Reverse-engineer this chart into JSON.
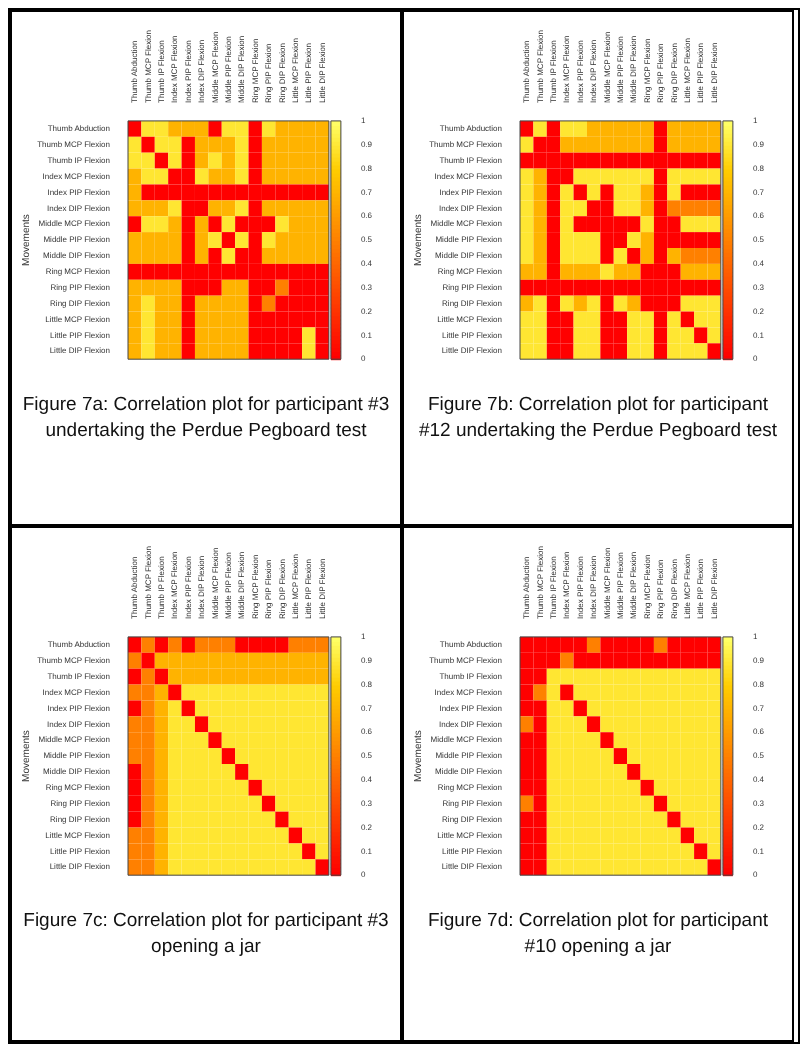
{
  "chart_data": [
    {
      "type": "heatmap",
      "ylabel": "Movements",
      "annotations": [
        "Figure 7a: Correlation plot for participant #3 undertaking the Perdue Pegboard test"
      ],
      "clim": [
        0,
        1
      ],
      "cticks": [
        0,
        0.1,
        0.2,
        0.3,
        0.4,
        0.5,
        0.6,
        0.7,
        0.8,
        0.9,
        1
      ],
      "categories": [
        "Thumb Abduction",
        "Thumb MCP Flexion",
        "Thumb IP Flexion",
        "Index MCP Flexion",
        "Index PIP Flexion",
        "Index DIP Flexion",
        "Middle MCP Flexion",
        "Middle PIP Flexion",
        "Middle DIP Flexion",
        "Ring MCP Flexion",
        "Ring PIP Flexion",
        "Ring DIP Flexion",
        "Little MCP Flexion",
        "Little PIP Flexion",
        "Little DIP Flexion"
      ],
      "y_categories": [
        "Thumb Abduction",
        "Thumb MCP Flexion",
        "Thumb IP Flexion",
        "Index MCP Flexion",
        "Index PIP Flexion",
        "Index DIP Flexion",
        "Middle MCP Flexion",
        "Middle PIP Flexion",
        "Middle DIP Flexion",
        "Ring MCP Flexion",
        "Ring PIP Flexion",
        "Ring DIP Flexion",
        "Little MCP Flexion",
        "Little PIP Flexion",
        "Little DIP Flexion"
      ],
      "cells": [
        [
          0,
          0.9,
          0.9,
          0.7,
          0.7,
          0.7,
          0,
          0.9,
          0.9,
          0,
          0.9,
          0.7,
          0.7,
          0.7,
          0.7
        ],
        [
          0.9,
          0,
          0.9,
          0.9,
          0,
          0.7,
          0.7,
          0.7,
          0.9,
          0,
          0.7,
          0.7,
          0.7,
          0.7,
          0.7
        ],
        [
          0.9,
          0.9,
          0,
          0.9,
          0,
          0.7,
          0.9,
          0.7,
          0.9,
          0,
          0.7,
          0.7,
          0.7,
          0.7,
          0.7
        ],
        [
          0.7,
          0.9,
          0.9,
          0,
          0,
          0.9,
          0.7,
          0.7,
          0.9,
          0,
          0.7,
          0.7,
          0.7,
          0.7,
          0.7
        ],
        [
          0.7,
          0,
          0,
          0,
          0,
          0,
          0,
          0,
          0,
          0,
          0,
          0,
          0,
          0,
          0
        ],
        [
          0.7,
          0.7,
          0.7,
          0.9,
          0,
          0,
          0.7,
          0.7,
          0.9,
          0,
          0.7,
          0.7,
          0.7,
          0.7,
          0.7
        ],
        [
          0,
          0.9,
          0.9,
          0.7,
          0,
          0.7,
          0,
          0.9,
          0,
          0,
          0,
          0.9,
          0.7,
          0.7,
          0.7
        ],
        [
          0.7,
          0.7,
          0.7,
          0.7,
          0,
          0.7,
          0.9,
          0,
          0.9,
          0,
          0.9,
          0.7,
          0.7,
          0.7,
          0.7
        ],
        [
          0.7,
          0.7,
          0.7,
          0.7,
          0,
          0.7,
          0,
          0.9,
          0,
          0,
          0.7,
          0.7,
          0.7,
          0.7,
          0.7
        ],
        [
          0,
          0,
          0,
          0,
          0,
          0,
          0,
          0,
          0,
          0,
          0,
          0,
          0,
          0,
          0
        ],
        [
          0.7,
          0.7,
          0.7,
          0.7,
          0,
          0,
          0,
          0.7,
          0.7,
          0,
          0,
          0.5,
          0,
          0,
          0
        ],
        [
          0.7,
          0.9,
          0.7,
          0.7,
          0,
          0.7,
          0.7,
          0.7,
          0.7,
          0,
          0.5,
          0,
          0,
          0,
          0
        ],
        [
          0.7,
          0.9,
          0.7,
          0.7,
          0,
          0.7,
          0.7,
          0.7,
          0.7,
          0,
          0,
          0,
          0,
          0,
          0
        ],
        [
          0.7,
          0.9,
          0.7,
          0.7,
          0,
          0.7,
          0.7,
          0.7,
          0.7,
          0,
          0,
          0,
          0,
          0.9,
          0
        ],
        [
          0.7,
          0.9,
          0.7,
          0.7,
          0,
          0.7,
          0.7,
          0.7,
          0.7,
          0,
          0,
          0,
          0,
          0.9,
          0
        ]
      ]
    },
    {
      "type": "heatmap",
      "ylabel": "Movements",
      "annotations": [
        "Figure 7b: Correlation plot for participant #12 undertaking the Perdue Pegboard test"
      ],
      "clim": [
        0,
        1
      ],
      "cticks": [
        0,
        0.1,
        0.2,
        0.3,
        0.4,
        0.5,
        0.6,
        0.7,
        0.8,
        0.9,
        1
      ],
      "categories": [
        "Thumb Abduction",
        "Thumb MCP Flexion",
        "Thumb IP Flexion",
        "Index MCP Flexion",
        "Index PIP Flexion",
        "Index DIP Flexion",
        "Middle MCP Flexion",
        "Middle PIP Flexion",
        "Middle DIP Flexion",
        "Ring MCP Flexion",
        "Ring PIP Flexion",
        "Ring DIP Flexion",
        "Little MCP Flexion",
        "Little PIP Flexion",
        "Little DIP Flexion"
      ],
      "y_categories": [
        "Thumb Abduction",
        "Thumb MCP Flexion",
        "Thumb IP Flexion",
        "Index MCP Flexion",
        "Index PIP Flexion",
        "Index DIP Flexion",
        "Middle MCP Flexion",
        "Middle PIP Flexion",
        "Middle DIP Flexion",
        "Ring MCP Flexion",
        "Ring PIP Flexion",
        "Ring DIP Flexion",
        "Little MCP Flexion",
        "Little PIP Flexion",
        "Little DIP Flexion"
      ],
      "cells": [
        [
          0,
          0.9,
          0,
          0.9,
          0.9,
          0.7,
          0.7,
          0.7,
          0.7,
          0.7,
          0,
          0.7,
          0.7,
          0.7,
          0.7
        ],
        [
          0.9,
          0,
          0,
          0.7,
          0.7,
          0.7,
          0.7,
          0.7,
          0.7,
          0.7,
          0,
          0.7,
          0.7,
          0.7,
          0.7
        ],
        [
          0,
          0,
          0,
          0,
          0,
          0,
          0,
          0,
          0,
          0,
          0,
          0,
          0,
          0,
          0
        ],
        [
          0.9,
          0.7,
          0,
          0,
          0.9,
          0.9,
          0.9,
          0.9,
          0.9,
          0.9,
          0,
          0.9,
          0.9,
          0.9,
          0.9
        ],
        [
          0.9,
          0.7,
          0,
          0.9,
          0,
          0.9,
          0,
          0.9,
          0.9,
          0.7,
          0,
          0.9,
          0,
          0,
          0
        ],
        [
          0.9,
          0.7,
          0,
          0.9,
          0.9,
          0,
          0,
          0.9,
          0.9,
          0.7,
          0,
          0.5,
          0.5,
          0.5,
          0.5
        ],
        [
          0.9,
          0.7,
          0,
          0.9,
          0,
          0,
          0,
          0,
          0,
          0.9,
          0,
          0,
          0.9,
          0.9,
          0.9
        ],
        [
          0.9,
          0.7,
          0,
          0.9,
          0.9,
          0.9,
          0,
          0,
          0.9,
          0.7,
          0,
          0,
          0,
          0,
          0
        ],
        [
          0.9,
          0.7,
          0,
          0.9,
          0.9,
          0.9,
          0,
          0.9,
          0,
          0.7,
          0,
          0.7,
          0.5,
          0.5,
          0.5
        ],
        [
          0.7,
          0.7,
          0,
          0.7,
          0.7,
          0.7,
          0.9,
          0.7,
          0.7,
          0,
          0,
          0,
          0.7,
          0.7,
          0.7
        ],
        [
          0,
          0,
          0,
          0,
          0,
          0,
          0,
          0,
          0,
          0,
          0,
          0,
          0,
          0,
          0
        ],
        [
          0.7,
          0.9,
          0,
          0.9,
          0.7,
          0.9,
          0,
          0.9,
          0.7,
          0,
          0,
          0,
          0.9,
          0.9,
          0.9
        ],
        [
          0.9,
          0.9,
          0,
          0,
          0.9,
          0.9,
          0,
          0,
          0.9,
          0.9,
          0,
          0.9,
          0,
          0.9,
          0.9
        ],
        [
          0.9,
          0.9,
          0,
          0,
          0.9,
          0.9,
          0,
          0,
          0.9,
          0.9,
          0,
          0.9,
          0.9,
          0,
          0.9
        ],
        [
          0.9,
          0.9,
          0,
          0,
          0.9,
          0.9,
          0,
          0,
          0.9,
          0.9,
          0,
          0.9,
          0.9,
          0.9,
          0
        ]
      ]
    },
    {
      "type": "heatmap",
      "ylabel": "Movements",
      "annotations": [
        "Figure 7c: Correlation plot for participant #3 opening a jar"
      ],
      "clim": [
        0,
        1
      ],
      "cticks": [
        0,
        0.1,
        0.2,
        0.3,
        0.4,
        0.5,
        0.6,
        0.7,
        0.8,
        0.9,
        1
      ],
      "categories": [
        "Thumb Abduction",
        "Thumb MCP Flexion",
        "Thumb IP Flexion",
        "Index MCP Flexion",
        "Index PIP Flexion",
        "Index DIP Flexion",
        "Middle MCP Flexion",
        "Middle PIP Flexion",
        "Middle DIP Flexion",
        "Ring MCP Flexion",
        "Ring PIP Flexion",
        "Ring DIP Flexion",
        "Little MCP Flexion",
        "Little PIP Flexion",
        "Little DIP Flexion"
      ],
      "y_categories": [
        "Thumb Abduction",
        "Thumb MCP Flexion",
        "Thumb IP Flexion",
        "Index MCP Flexion",
        "Index PIP Flexion",
        "Index DIP Flexion",
        "Middle MCP Flexion",
        "Middle PIP Flexion",
        "Middle DIP Flexion",
        "Ring MCP Flexion",
        "Ring PIP Flexion",
        "Ring DIP Flexion",
        "Little MCP Flexion",
        "Little PIP Flexion",
        "Little DIP Flexion"
      ],
      "cells": [
        [
          0,
          0.5,
          0,
          0.5,
          0,
          0.5,
          0.5,
          0.5,
          0,
          0,
          0,
          0,
          0.5,
          0.5,
          0.5
        ],
        [
          0.5,
          0,
          0.7,
          0.7,
          0.7,
          0.7,
          0.7,
          0.7,
          0.7,
          0.7,
          0.7,
          0.7,
          0.7,
          0.7,
          0.7
        ],
        [
          0,
          0.5,
          0,
          0.7,
          0.7,
          0.7,
          0.7,
          0.7,
          0.7,
          0.7,
          0.7,
          0.7,
          0.7,
          0.7,
          0.7
        ],
        [
          0.5,
          0.5,
          0.7,
          0,
          0.9,
          0.9,
          0.9,
          0.9,
          0.9,
          0.9,
          0.9,
          0.9,
          0.9,
          0.9,
          0.9
        ],
        [
          0,
          0.5,
          0.7,
          0.9,
          0,
          0.9,
          0.9,
          0.9,
          0.9,
          0.9,
          0.9,
          0.9,
          0.9,
          0.9,
          0.9
        ],
        [
          0.5,
          0.5,
          0.7,
          0.9,
          0.9,
          0,
          0.9,
          0.9,
          0.9,
          0.9,
          0.9,
          0.9,
          0.9,
          0.9,
          0.9
        ],
        [
          0.5,
          0.5,
          0.7,
          0.9,
          0.9,
          0.9,
          0,
          0.9,
          0.9,
          0.9,
          0.9,
          0.9,
          0.9,
          0.9,
          0.9
        ],
        [
          0.5,
          0.5,
          0.7,
          0.9,
          0.9,
          0.9,
          0.9,
          0,
          0.9,
          0.9,
          0.9,
          0.9,
          0.9,
          0.9,
          0.9
        ],
        [
          0,
          0.5,
          0.7,
          0.9,
          0.9,
          0.9,
          0.9,
          0.9,
          0,
          0.9,
          0.9,
          0.9,
          0.9,
          0.9,
          0.9
        ],
        [
          0,
          0.5,
          0.7,
          0.9,
          0.9,
          0.9,
          0.9,
          0.9,
          0.9,
          0,
          0.9,
          0.9,
          0.9,
          0.9,
          0.9
        ],
        [
          0,
          0.5,
          0.7,
          0.9,
          0.9,
          0.9,
          0.9,
          0.9,
          0.9,
          0.9,
          0,
          0.9,
          0.9,
          0.9,
          0.9
        ],
        [
          0,
          0.5,
          0.7,
          0.9,
          0.9,
          0.9,
          0.9,
          0.9,
          0.9,
          0.9,
          0.9,
          0,
          0.9,
          0.9,
          0.9
        ],
        [
          0.5,
          0.5,
          0.7,
          0.9,
          0.9,
          0.9,
          0.9,
          0.9,
          0.9,
          0.9,
          0.9,
          0.9,
          0,
          0.9,
          0.9
        ],
        [
          0.5,
          0.5,
          0.7,
          0.9,
          0.9,
          0.9,
          0.9,
          0.9,
          0.9,
          0.9,
          0.9,
          0.9,
          0.9,
          0,
          0.9
        ],
        [
          0.5,
          0.5,
          0.7,
          0.9,
          0.9,
          0.9,
          0.9,
          0.9,
          0.9,
          0.9,
          0.9,
          0.9,
          0.9,
          0.9,
          0
        ]
      ]
    },
    {
      "type": "heatmap",
      "ylabel": "Movements",
      "annotations": [
        "Figure 7d: Correlation plot for participant #10 opening a jar"
      ],
      "clim": [
        0,
        1
      ],
      "cticks": [
        0,
        0.1,
        0.2,
        0.3,
        0.4,
        0.5,
        0.6,
        0.7,
        0.8,
        0.9,
        1
      ],
      "categories": [
        "Thumb Abduction",
        "Thumb MCP Flexion",
        "Thumb IP Flexion",
        "Index MCP Flexion",
        "Index PIP Flexion",
        "Index DIP Flexion",
        "Middle MCP Flexion",
        "Middle PIP Flexion",
        "Middle DIP Flexion",
        "Ring MCP Flexion",
        "Ring PIP Flexion",
        "Ring DIP Flexion",
        "Little MCP Flexion",
        "Little PIP Flexion",
        "Little DIP Flexion"
      ],
      "y_categories": [
        "Thumb Abduction",
        "Thumb MCP Flexion",
        "Thumb IP Flexion",
        "Index MCP Flexion",
        "Index PIP Flexion",
        "Index DIP Flexion",
        "Middle MCP Flexion",
        "Middle PIP Flexion",
        "Middle DIP Flexion",
        "Ring MCP Flexion",
        "Ring PIP Flexion",
        "Ring DIP Flexion",
        "Little MCP Flexion",
        "Little PIP Flexion",
        "Little DIP Flexion"
      ],
      "cells": [
        [
          0,
          0,
          0,
          0,
          0,
          0.5,
          0,
          0,
          0,
          0,
          0.5,
          0,
          0,
          0,
          0
        ],
        [
          0,
          0,
          0,
          0.5,
          0,
          0,
          0,
          0,
          0,
          0,
          0,
          0,
          0,
          0,
          0
        ],
        [
          0,
          0,
          0.9,
          0.9,
          0.9,
          0.9,
          0.9,
          0.9,
          0.9,
          0.9,
          0.9,
          0.9,
          0.9,
          0.9,
          0.9
        ],
        [
          0,
          0.5,
          0.9,
          0,
          0.9,
          0.9,
          0.9,
          0.9,
          0.9,
          0.9,
          0.9,
          0.9,
          0.9,
          0.9,
          0.9
        ],
        [
          0,
          0,
          0.9,
          0.9,
          0,
          0.9,
          0.9,
          0.9,
          0.9,
          0.9,
          0.9,
          0.9,
          0.9,
          0.9,
          0.9
        ],
        [
          0.5,
          0,
          0.9,
          0.9,
          0.9,
          0,
          0.9,
          0.9,
          0.9,
          0.9,
          0.9,
          0.9,
          0.9,
          0.9,
          0.9
        ],
        [
          0,
          0,
          0.9,
          0.9,
          0.9,
          0.9,
          0,
          0.9,
          0.9,
          0.9,
          0.9,
          0.9,
          0.9,
          0.9,
          0.9
        ],
        [
          0,
          0,
          0.9,
          0.9,
          0.9,
          0.9,
          0.9,
          0,
          0.9,
          0.9,
          0.9,
          0.9,
          0.9,
          0.9,
          0.9
        ],
        [
          0,
          0,
          0.9,
          0.9,
          0.9,
          0.9,
          0.9,
          0.9,
          0,
          0.9,
          0.9,
          0.9,
          0.9,
          0.9,
          0.9
        ],
        [
          0,
          0,
          0.9,
          0.9,
          0.9,
          0.9,
          0.9,
          0.9,
          0.9,
          0,
          0.9,
          0.9,
          0.9,
          0.9,
          0.9
        ],
        [
          0.5,
          0,
          0.9,
          0.9,
          0.9,
          0.9,
          0.9,
          0.9,
          0.9,
          0.9,
          0,
          0.9,
          0.9,
          0.9,
          0.9
        ],
        [
          0,
          0,
          0.9,
          0.9,
          0.9,
          0.9,
          0.9,
          0.9,
          0.9,
          0.9,
          0.9,
          0,
          0.9,
          0.9,
          0.9
        ],
        [
          0,
          0,
          0.9,
          0.9,
          0.9,
          0.9,
          0.9,
          0.9,
          0.9,
          0.9,
          0.9,
          0.9,
          0,
          0.9,
          0.9
        ],
        [
          0,
          0,
          0.9,
          0.9,
          0.9,
          0.9,
          0.9,
          0.9,
          0.9,
          0.9,
          0.9,
          0.9,
          0.9,
          0,
          0.9
        ],
        [
          0,
          0,
          0.9,
          0.9,
          0.9,
          0.9,
          0.9,
          0.9,
          0.9,
          0.9,
          0.9,
          0.9,
          0.9,
          0.9,
          0
        ]
      ]
    }
  ]
}
